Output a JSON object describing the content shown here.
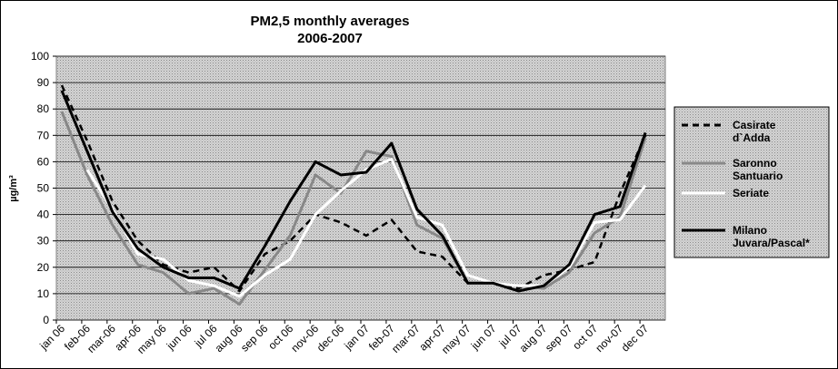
{
  "chart_data": {
    "type": "line",
    "title": [
      "PM2,5 monthly averages",
      "2006-2007"
    ],
    "y_label": "µg/m³",
    "categories": [
      "jan 06",
      "feb-06",
      "mar-06",
      "apr-06",
      "may 06",
      "jun 06",
      "jul 06",
      "aug 06",
      "sep 06",
      "oct 06",
      "nov-06",
      "dec 06",
      "jan 07",
      "feb-07",
      "mar-07",
      "apr-07",
      "may 07",
      "jun 07",
      "jul 07",
      "aug 07",
      "sep 07",
      "oct 07",
      "nov-07",
      "dec 07"
    ],
    "series": [
      {
        "name": "Casirate d`Adda",
        "color": "#000000",
        "dashed": true,
        "values": [
          89,
          68,
          45,
          30,
          21,
          18,
          20,
          11,
          25,
          30,
          40,
          37,
          32,
          38,
          26,
          24,
          14,
          14,
          12,
          17,
          19,
          22,
          48,
          70
        ]
      },
      {
        "name": "Saronno Santuario",
        "color": "#888888",
        "values": [
          79,
          55,
          36,
          21,
          18,
          10,
          12,
          6,
          19,
          32,
          55,
          48,
          64,
          62,
          36,
          31,
          14,
          14,
          13,
          12,
          18,
          33,
          39,
          69
        ]
      },
      {
        "name": "Seriate",
        "color": "#ffffff",
        "values": [
          null,
          57,
          42,
          25,
          23,
          15,
          13,
          9,
          17,
          23,
          40,
          49,
          57,
          61,
          39,
          36,
          17,
          14,
          13,
          13,
          20,
          37,
          38,
          51
        ]
      },
      {
        "name": "Milano Juvara/Pascal*",
        "color": "#000000",
        "values": [
          87,
          64,
          41,
          27,
          20,
          16,
          16,
          12,
          28,
          45,
          60,
          55,
          56,
          67,
          42,
          32,
          14,
          14,
          11,
          13,
          21,
          40,
          43,
          71
        ]
      }
    ],
    "ylim": [
      0,
      100
    ],
    "yticks": [
      0,
      10,
      20,
      30,
      40,
      50,
      60,
      70,
      80,
      90,
      100
    ],
    "grid": true,
    "legend": "right"
  }
}
